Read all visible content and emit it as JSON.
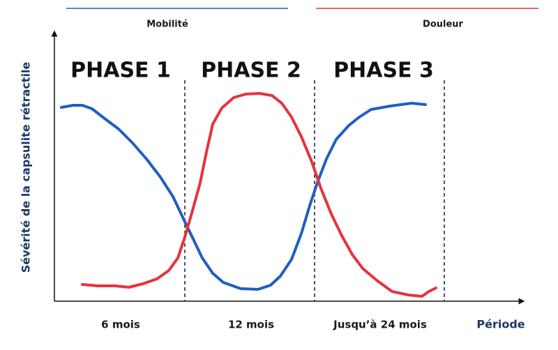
{
  "legend": [
    {
      "label": "Mobilité"
    },
    {
      "label": "Douleur"
    }
  ],
  "axes": {
    "y_label": "Sévérité de la capsulite rétractile",
    "x_label": "Période"
  },
  "phases": [
    "PHASE 1",
    "PHASE 2",
    "PHASE 3"
  ],
  "periods": [
    "6 mois",
    "12 mois",
    "Jusqu’à 24 mois"
  ]
}
